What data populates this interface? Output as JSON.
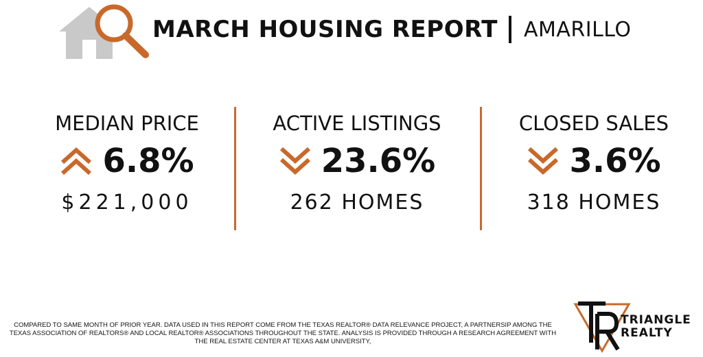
{
  "header": {
    "title": "MARCH HOUSING REPORT",
    "city": "AMARILLO",
    "logo_icon": "house-magnifier-icon"
  },
  "colors": {
    "accent": "#c8692b",
    "house_gray": "#c9c9c9",
    "text": "#111111"
  },
  "stats": [
    {
      "label": "MEDIAN PRICE",
      "direction": "up",
      "icon": "double-chevron-up-icon",
      "percent": "6.8%",
      "value": "$221,000"
    },
    {
      "label": "ACTIVE LISTINGS",
      "direction": "down",
      "icon": "double-chevron-down-icon",
      "percent": "23.6%",
      "value": "262 HOMES"
    },
    {
      "label": "CLOSED SALES",
      "direction": "down",
      "icon": "double-chevron-down-icon",
      "percent": "3.6%",
      "value": "318 HOMES"
    }
  ],
  "footer": {
    "disclaimer": "COMPARED TO SAME MONTH OF PRIOR YEAR. DATA USED IN THIS REPORT COME FROM THE TEXAS REALTOR® DATA RELEVANCE PROJECT, A PARTNERSIP AMONG THE TEXAS ASSOCIATION OF REALTORS® AND LOCAL REALTOR® ASSOCIATIONS THROUGHOUT THE STATE. ANALYSIS IS PROVIDED THROUGH A RESEARCH AGREEMENT WITH THE REAL ESTATE CENTER AT TEXAS A&M UNIVERSITY,"
  },
  "brand": {
    "line1": "TRIANGLE",
    "line2": "REALTY",
    "mark_icon": "triangle-tr-logo-icon"
  }
}
